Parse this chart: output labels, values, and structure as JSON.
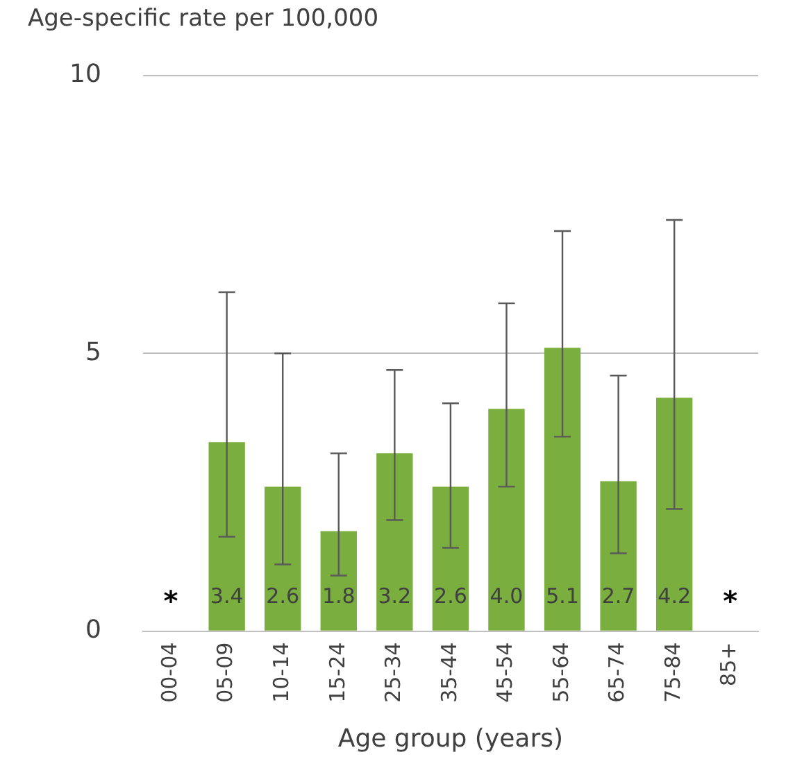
{
  "chart_data": {
    "type": "bar",
    "ylabel": "Age-specific rate per 100,000",
    "xlabel": "Age group (years)",
    "categories": [
      "00-04",
      "05-09",
      "10-14",
      "15-24",
      "25-34",
      "35-44",
      "45-54",
      "55-64",
      "65-74",
      "75-84",
      "85+"
    ],
    "values": [
      null,
      3.4,
      2.6,
      1.8,
      3.2,
      2.6,
      4.0,
      5.1,
      2.7,
      4.2,
      null
    ],
    "errors": [
      null,
      [
        1.7,
        6.1
      ],
      [
        1.2,
        5.0
      ],
      [
        1.0,
        3.2
      ],
      [
        2.0,
        4.7
      ],
      [
        1.5,
        4.1
      ],
      [
        2.6,
        5.9
      ],
      [
        3.5,
        7.2
      ],
      [
        1.4,
        4.6
      ],
      [
        2.2,
        7.4
      ],
      null
    ],
    "value_labels": [
      null,
      "3.4",
      "2.6",
      "1.8",
      "3.2",
      "2.6",
      "4.0",
      "5.1",
      "2.7",
      "4.2",
      null
    ],
    "color": "#7aae3e",
    "ylim": [
      0,
      10
    ],
    "yticks": [
      0,
      5,
      10
    ],
    "grid": "y",
    "legend": false,
    "annotations": [
      "*",
      "*"
    ]
  }
}
